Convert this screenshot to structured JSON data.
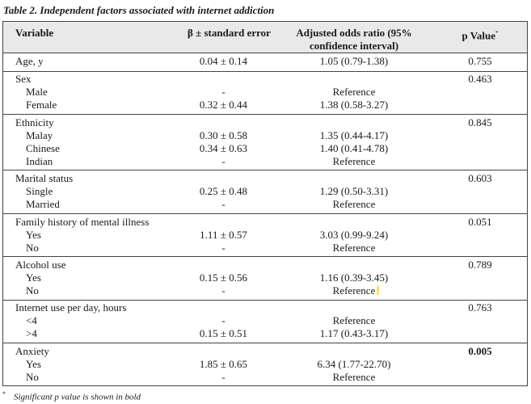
{
  "caption": "Table 2. Independent factors associated with internet addiction",
  "headers": {
    "variable": "Variable",
    "beta": "β ± standard error",
    "aor_line1": "Adjusted odds ratio (95%",
    "aor_line2": "confidence interval)",
    "p": "p Value",
    "p_marker": "*"
  },
  "rows": [
    {
      "label": "Age, y",
      "beta": "0.04 ± 0.14",
      "aor": "1.05 (0.79-1.38)",
      "p": "0.755"
    },
    {
      "label": "Sex",
      "beta": "",
      "aor": "",
      "p": "0.463"
    },
    {
      "label": "Male",
      "beta": "-",
      "aor": "Reference",
      "p": ""
    },
    {
      "label": "Female",
      "beta": "0.32 ± 0.44",
      "aor": "1.38 (0.58-3.27)",
      "p": ""
    },
    {
      "label": "Ethnicity",
      "beta": "",
      "aor": "",
      "p": "0.845"
    },
    {
      "label": "Malay",
      "beta": "0.30 ± 0.58",
      "aor": "1.35 (0.44-4.17)",
      "p": ""
    },
    {
      "label": "Chinese",
      "beta": "0.34 ± 0.63",
      "aor": "1.40 (0.41-4.78)",
      "p": ""
    },
    {
      "label": "Indian",
      "beta": "-",
      "aor": "Reference",
      "p": ""
    },
    {
      "label": "Marital status",
      "beta": "",
      "aor": "",
      "p": "0.603"
    },
    {
      "label": "Single",
      "beta": "0.25 ± 0.48",
      "aor": "1.29 (0.50-3.31)",
      "p": ""
    },
    {
      "label": "Married",
      "beta": "-",
      "aor": "Reference",
      "p": ""
    },
    {
      "label": "Family history of mental illness",
      "beta": "",
      "aor": "",
      "p": "0.051"
    },
    {
      "label": "Yes",
      "beta": "1.11 ± 0.57",
      "aor": "3.03 (0.99-9.24)",
      "p": ""
    },
    {
      "label": "No",
      "beta": "-",
      "aor": "Reference",
      "p": ""
    },
    {
      "label": "Alcohol use",
      "beta": "",
      "aor": "",
      "p": "0.789"
    },
    {
      "label": "Yes",
      "beta": "0.15 ± 0.56",
      "aor": "1.16 (0.39-3.45)",
      "p": ""
    },
    {
      "label": "No",
      "beta": "-",
      "aor": "Reference",
      "p": ""
    },
    {
      "label": "Internet use per day, hours",
      "beta": "",
      "aor": "",
      "p": "0.763"
    },
    {
      "label": "<4",
      "beta": "-",
      "aor": "Reference",
      "p": ""
    },
    {
      "label": ">4",
      "beta": "0.15 ± 0.51",
      "aor": "1.17 (0.43-3.17)",
      "p": ""
    },
    {
      "label": "Anxiety",
      "beta": "",
      "aor": "",
      "p": "0.005"
    },
    {
      "label": "Yes",
      "beta": "1.85 ± 0.65",
      "aor": "6.34 (1.77-22.70)",
      "p": ""
    },
    {
      "label": "No",
      "beta": "-",
      "aor": "Reference",
      "p": ""
    }
  ],
  "footnote": {
    "marker": "*",
    "text": "Significant p value is shown in bold"
  }
}
